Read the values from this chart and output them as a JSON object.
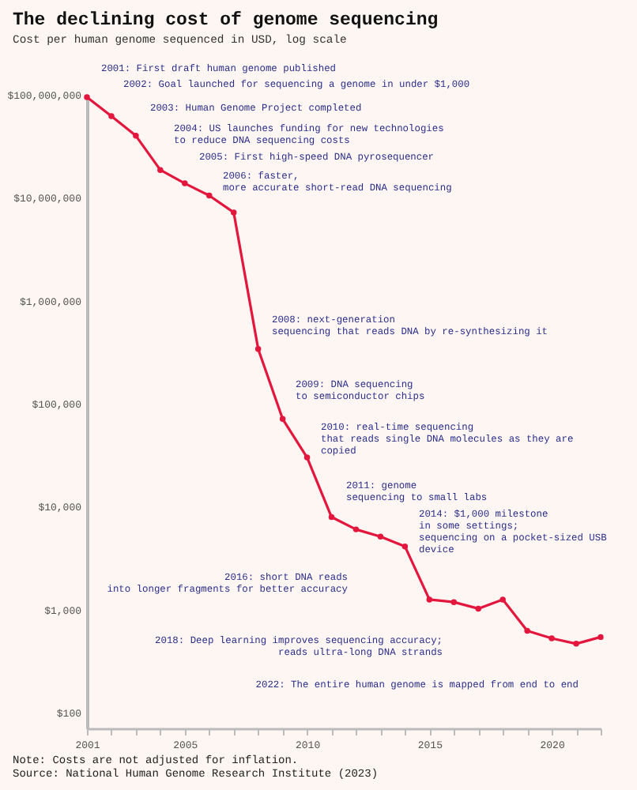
{
  "chart_data": {
    "type": "line",
    "title": "The declining cost of genome sequencing",
    "subtitle": "Cost per human genome sequenced in USD, log scale",
    "x": [
      2001,
      2002,
      2003,
      2004,
      2005,
      2006,
      2007,
      2008,
      2009,
      2010,
      2011,
      2012,
      2013,
      2014,
      2015,
      2016,
      2017,
      2018,
      2019,
      2020,
      2021,
      2022
    ],
    "series": [
      {
        "color": "#e3173e",
        "values": [
          95000000,
          62000000,
          40000000,
          18600000,
          13800000,
          10500000,
          7200000,
          340000,
          71000,
          30000,
          7900,
          6000,
          5100,
          4100,
          1250,
          1180,
          1020,
          1250,
          620,
          525,
          465,
          540
        ]
      }
    ],
    "log": "y",
    "marker": "circle",
    "line_style": "solid",
    "grid": false,
    "xlim": [
      2001,
      2022
    ],
    "xticks": [
      2001,
      {
        "value": 2002,
        "label": null
      },
      {
        "value": 2003,
        "label": null
      },
      {
        "value": 2004,
        "label": null
      },
      2005,
      {
        "value": 2006,
        "label": null
      },
      {
        "value": 2007,
        "label": null
      },
      {
        "value": 2008,
        "label": null
      },
      {
        "value": 2009,
        "label": null
      },
      2010,
      {
        "value": 2011,
        "label": null
      },
      {
        "value": 2012,
        "label": null
      },
      {
        "value": 2013,
        "label": null
      },
      {
        "value": 2014,
        "label": null
      },
      2015,
      {
        "value": 2016,
        "label": null
      },
      {
        "value": 2017,
        "label": null
      },
      {
        "value": 2018,
        "label": null
      },
      {
        "value": 2019,
        "label": null
      },
      2020,
      {
        "value": 2021,
        "label": null
      },
      {
        "value": 2022,
        "label": null
      }
    ],
    "ylim": [
      70,
      100000000
    ],
    "yticks": [
      {
        "value": 100,
        "label": "$100"
      },
      {
        "value": 1000,
        "label": "$1,000"
      },
      {
        "value": 10000,
        "label": "$10,000"
      },
      {
        "value": 100000,
        "label": "$100,000"
      },
      {
        "value": 1000000,
        "label": "$1,000,000"
      },
      {
        "value": 10000000,
        "label": "$10,000,000"
      },
      {
        "value": 100000000,
        "label": "$100,000,000"
      }
    ],
    "annotations": [
      "2001: First draft human genome published",
      "2002: Goal launched for sequencing a genome in under $1,000",
      "2003: Human Genome Project completed",
      "2004: US launches funding for new technologies\nto reduce DNA sequencing costs",
      "2005: First high-speed DNA pyrosequencer",
      "2006: faster,\nmore accurate short-read DNA sequencing",
      "2008: next-generation\nsequencing that reads DNA by re-synthesizing it",
      "2009: DNA sequencing\nto semiconductor chips",
      "2010: real-time sequencing\nthat reads single DNA molecules as they are\ncopied",
      "2011: genome\nsequencing to small labs",
      "2014: $1,000 milestone\nin some settings;\nsequencing on a pocket-sized USB\ndevice",
      "2016: short DNA reads\ninto longer fragments for better accuracy",
      "2018: Deep learning improves sequencing accuracy;\nreads ultra-long DNA strands",
      "2022: The entire human genome is mapped from end to end",
      "Note: Costs are not adjusted for inflation.",
      "Source: National Human Genome Research Institute (2023)"
    ]
  }
}
